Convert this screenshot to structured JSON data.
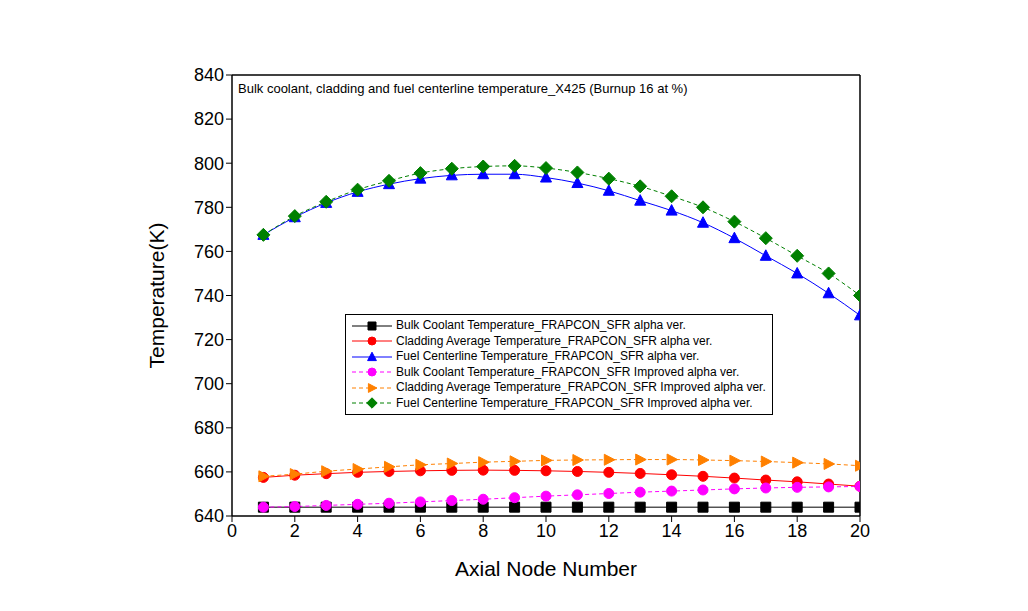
{
  "chart_data": {
    "type": "line",
    "title": "Bulk coolant, cladding and fuel centerline temperature_X425 (Burnup 16 at %)",
    "x_label": "Axial Node Number",
    "y_label": "Temperature(K)",
    "x": [
      1,
      2,
      3,
      4,
      5,
      6,
      7,
      8,
      9,
      10,
      11,
      12,
      13,
      14,
      15,
      16,
      17,
      18,
      19,
      20
    ],
    "xlim": [
      0,
      20
    ],
    "xticks": [
      0,
      2,
      4,
      6,
      8,
      10,
      12,
      14,
      16,
      18,
      20
    ],
    "ylim": [
      640,
      840
    ],
    "yticks": [
      640,
      660,
      680,
      700,
      720,
      740,
      760,
      780,
      800,
      820,
      840
    ],
    "grid": false,
    "series": [
      {
        "name": "Bulk Coolant Temperature_FRAPCON_SFR alpha ver.",
        "color": "#000000",
        "marker": "square",
        "line_style": "solid",
        "values": [
          644,
          644,
          644,
          644,
          644,
          644,
          644,
          644,
          644,
          644,
          644,
          644,
          644,
          644,
          644,
          644,
          644,
          644,
          644,
          644
        ]
      },
      {
        "name": "Cladding Average Temperature_FRAPCON_SFR alpha ver.",
        "color": "#ff0000",
        "marker": "circle",
        "line_style": "solid",
        "values": [
          657.5,
          658.5,
          659.2,
          659.8,
          660.2,
          660.5,
          660.7,
          660.8,
          660.7,
          660.5,
          660.2,
          659.8,
          659.3,
          658.7,
          658,
          657.2,
          656.3,
          655.5,
          654.5,
          653.5
        ]
      },
      {
        "name": "Fuel Centerline Temperature_FRAPCON_SFR alpha ver.",
        "color": "#0000ff",
        "marker": "triangle",
        "line_style": "solid",
        "values": [
          767.5,
          775.5,
          782,
          787,
          790.5,
          793,
          794.5,
          795,
          795,
          793.5,
          791,
          787.5,
          783,
          778.5,
          773,
          766,
          758,
          750,
          741,
          731
        ]
      },
      {
        "name": "Bulk Coolant Temperature_FRAPCON_SFR Improved alpha ver.",
        "color": "#ff00ff",
        "marker": "circle",
        "line_style": "dashed",
        "values": [
          644,
          644.3,
          644.8,
          645.3,
          645.8,
          646.4,
          647,
          647.6,
          648.3,
          649,
          649.6,
          650.2,
          650.8,
          651.3,
          651.8,
          652.3,
          652.7,
          653,
          653.2,
          653.4
        ]
      },
      {
        "name": "Cladding Average Temperature_FRAPCON_SFR Improved alpha ver.",
        "color": "#ff8000",
        "marker": "triangle-right",
        "line_style": "dashed",
        "values": [
          658,
          659,
          660.3,
          661.3,
          662.3,
          663.2,
          663.8,
          664.4,
          664.8,
          665.2,
          665.4,
          665.5,
          665.6,
          665.6,
          665.4,
          665.1,
          664.7,
          664.2,
          663.6,
          662.8
        ]
      },
      {
        "name": "Fuel Centerline Temperature_FRAPCON_SFR Improved alpha ver.",
        "color": "#008000",
        "marker": "diamond",
        "line_style": "dashed",
        "values": [
          767.5,
          776,
          782.5,
          788,
          792,
          795.5,
          797.5,
          798.5,
          798.8,
          797.8,
          795.8,
          793,
          789.5,
          785,
          780,
          773.5,
          766,
          758,
          750,
          740
        ]
      }
    ]
  }
}
